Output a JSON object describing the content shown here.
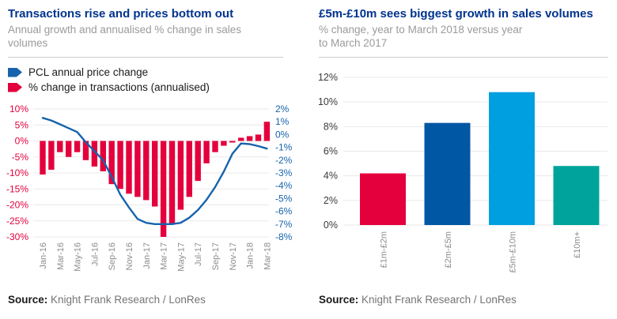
{
  "source": {
    "label": "Source:",
    "text": "Knight Frank Research / LonRes"
  },
  "colors": {
    "title": "#00338e",
    "subtitle": "#9b9b9b",
    "divider": "#cccccc",
    "grid": "#e9e9e9",
    "tick_label_gray": "#8c8c8c",
    "bar_red": "#e4003c",
    "line_blue": "#1663ad",
    "right_chart_ylabels": "#3a3a3a"
  },
  "chart_data": [
    {
      "type": "combo_bar_line",
      "title": "Transactions rise and prices bottom out",
      "subtitle": "Annual growth and annualised % change in sales\nvolumes",
      "legend": [
        {
          "label": "PCL annual price change",
          "color": "#1663ad"
        },
        {
          "label": "% change in transactions (annualised)",
          "color": "#e4003c"
        }
      ],
      "x": [
        "Jan-16",
        "Feb-16",
        "Mar-16",
        "Apr-16",
        "May-16",
        "Jun-16",
        "Jul-16",
        "Aug-16",
        "Sep-16",
        "Oct-16",
        "Nov-16",
        "Dec-16",
        "Jan-17",
        "Feb-17",
        "Mar-17",
        "Apr-17",
        "May-17",
        "Jun-17",
        "Jul-17",
        "Aug-17",
        "Sep-17",
        "Oct-17",
        "Nov-17",
        "Dec-17",
        "Jan-18",
        "Feb-18",
        "Mar-18"
      ],
      "x_tick_labels": [
        "Jan-16",
        "Mar-16",
        "May-16",
        "Jul-16",
        "Sep-16",
        "Nov-16",
        "Jan-17",
        "Mar-17",
        "May-17",
        "Jul-17",
        "Sep-17",
        "Nov-17",
        "Jan-18",
        "Mar-18"
      ],
      "left_axis": {
        "min": -30,
        "max": 10,
        "step": 5,
        "format": "percent",
        "color": "#e4003c"
      },
      "right_axis": {
        "min": -8,
        "max": 2,
        "step": 1,
        "format": "percent",
        "color": "#1663ad"
      },
      "series": [
        {
          "name": "% change in transactions (annualised)",
          "type": "bar",
          "axis": "left",
          "color": "#e4003c",
          "values": [
            -10.5,
            -9,
            -3.5,
            -5,
            -3.5,
            -6,
            -8,
            -9.5,
            -13.5,
            -15,
            -16.5,
            -17.5,
            -18.5,
            -20.5,
            -30,
            -26,
            -21.5,
            -17.5,
            -12.5,
            -7,
            -3.5,
            -1.5,
            -0.5,
            1,
            1.5,
            2,
            6
          ]
        },
        {
          "name": "PCL annual price change",
          "type": "line",
          "axis": "right",
          "color": "#1663ad",
          "values": [
            1.3,
            1.1,
            0.8,
            0.5,
            0.2,
            -0.6,
            -1.3,
            -2,
            -3.3,
            -4.7,
            -5.7,
            -6.6,
            -6.9,
            -7,
            -7,
            -7,
            -6.9,
            -6.5,
            -5.9,
            -5.1,
            -4.1,
            -2.9,
            -1.5,
            -0.7,
            -0.75,
            -0.9,
            -1.1
          ]
        }
      ],
      "grid": true,
      "legend_position": "top-left"
    },
    {
      "type": "bar",
      "title": "£5m-£10m sees biggest growth in sales volumes",
      "subtitle": "% change, year to March 2018 versus year\nto March 2017",
      "categories": [
        "£1m-£2m",
        "£2m-£5m",
        "£5m-£10m",
        "£10m+"
      ],
      "values": [
        4.2,
        8.3,
        10.8,
        4.8
      ],
      "colors": [
        "#e4003c",
        "#0057a3",
        "#009fe0",
        "#00a39b"
      ],
      "ylim": [
        0,
        12
      ],
      "ystep": 2,
      "ylabel_format": "percent",
      "xlabel": "",
      "ylabel": "",
      "grid": true
    }
  ]
}
